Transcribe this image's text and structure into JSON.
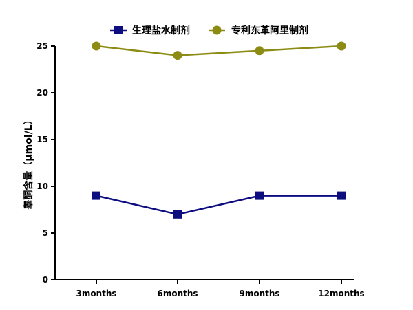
{
  "chart_data": {
    "type": "line",
    "categories": [
      "3months",
      "6months",
      "9months",
      "12months"
    ],
    "series": [
      {
        "name": "生理盐水制剂",
        "values": [
          9,
          7,
          9,
          9
        ],
        "color": "#0d0d80",
        "marker": "square"
      },
      {
        "name": "专利东革阿里制剂",
        "values": [
          25,
          24,
          24.5,
          25
        ],
        "color": "#8c8c14",
        "marker": "circle"
      }
    ],
    "title": "",
    "xlabel": "",
    "ylabel": "睾酮含量（μmol/L）",
    "ylim": [
      0,
      25
    ],
    "yticks": [
      0,
      5,
      10,
      15,
      20,
      25
    ],
    "grid": false,
    "legend_position": "top"
  }
}
